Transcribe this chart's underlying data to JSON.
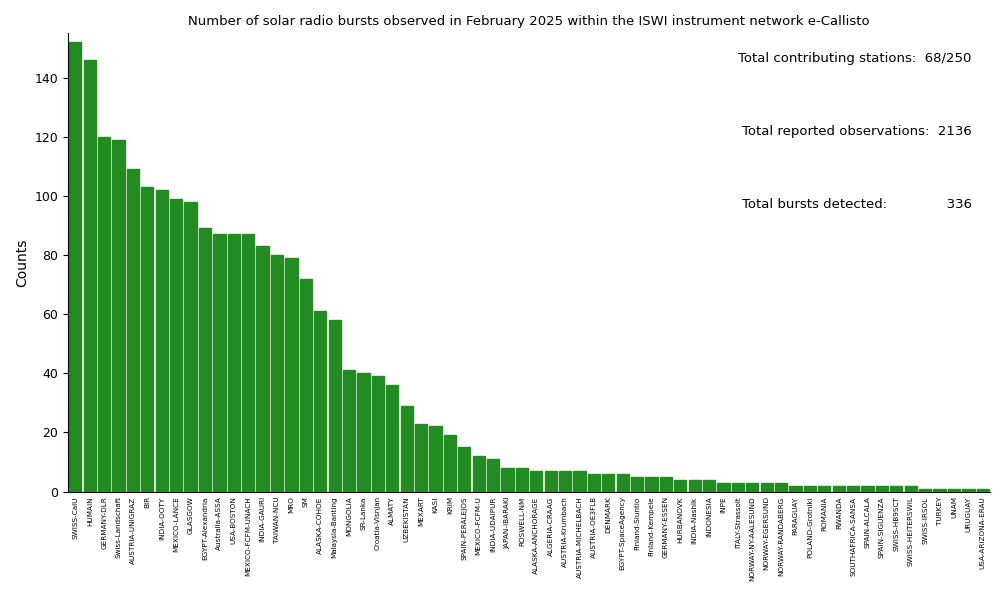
{
  "title": "Number of solar radio bursts observed in February 2025 within the ISWI instrument network e-Callisto",
  "ylabel": "Counts",
  "bar_color": "#228B22",
  "annotation_line1": "Total contributing stations:  68/250",
  "annotation_line2": "Total reported observations:  2136",
  "annotation_line3": "Total bursts detected:              336",
  "categories": [
    "SWISS-CalU",
    "HUMAIN",
    "GERMANY-DLR",
    "Swiss-Landschaft",
    "AUSTRIA-UNIGRAZ",
    "BIR",
    "INDIA-OOTY",
    "MEXICO-LANCE",
    "GLASGOW",
    "EGYPT-Alexandria",
    "Australia-ASSA",
    "USA-BOSTON",
    "MEXICO-FCFM-UNACH",
    "INDIA-GAURI",
    "TAIWAN-NCU",
    "MRO",
    "SM",
    "ALASKA-COHOE",
    "Malaysia-Banting",
    "MONGOLIA",
    "SR-Lanka",
    "Croatia-Visnjan",
    "ALMATY",
    "UZBEKISTAN",
    "MEXART",
    "KASI",
    "KRIM",
    "SPAIN-PERALEJOS",
    "MEXICO-FCFM-U",
    "INDIA-UDAIPUR",
    "JAPAN-IBARAKI",
    "ROSWELL-NM",
    "ALASKA-ANCHORAGE",
    "ALGERIA-CRAAG",
    "AUSTRIA-Krumbach",
    "AUSTRIA-MICHELBACH",
    "AUSTRIA-OE3FLB",
    "DENMARK",
    "EGYPT-SpaceAgency",
    "Finland-Siuntio",
    "Finland-Kempele",
    "GERMANY-ESSEN",
    "HURBANOVK",
    "INDIA-Nashik",
    "INDONESIA",
    "INPE",
    "ITALY-Strassolt",
    "NORWAY-NY-AALESUND",
    "NORWAY-EGERSUND",
    "NORWAY-RANDABERG",
    "PARAGUAY",
    "POLAND-Grotniki",
    "ROMANIA",
    "RWANDA",
    "SOUTHAFRICA-SANSA",
    "SPAIN-ALCALA",
    "SPAIN-SIGUENZA",
    "SWISS-HB9SCT",
    "SWISS-HEITERSWIL",
    "SWISS-IRSOL",
    "TURKEY",
    "UNAM",
    "URUGUAY",
    "USA-ARIZONA-ERAU"
  ],
  "values": [
    152,
    146,
    120,
    119,
    109,
    103,
    102,
    99,
    98,
    89,
    87,
    87,
    87,
    83,
    80,
    79,
    72,
    61,
    58,
    41,
    40,
    39,
    36,
    29,
    23,
    22,
    19,
    15,
    12,
    11,
    8,
    8,
    7,
    7,
    7,
    7,
    6,
    6,
    6,
    5,
    5,
    5,
    4,
    4,
    4,
    3,
    3,
    3,
    3,
    3,
    2,
    2,
    2,
    2,
    2,
    2,
    2,
    2,
    2,
    1,
    1,
    1,
    1,
    1
  ]
}
